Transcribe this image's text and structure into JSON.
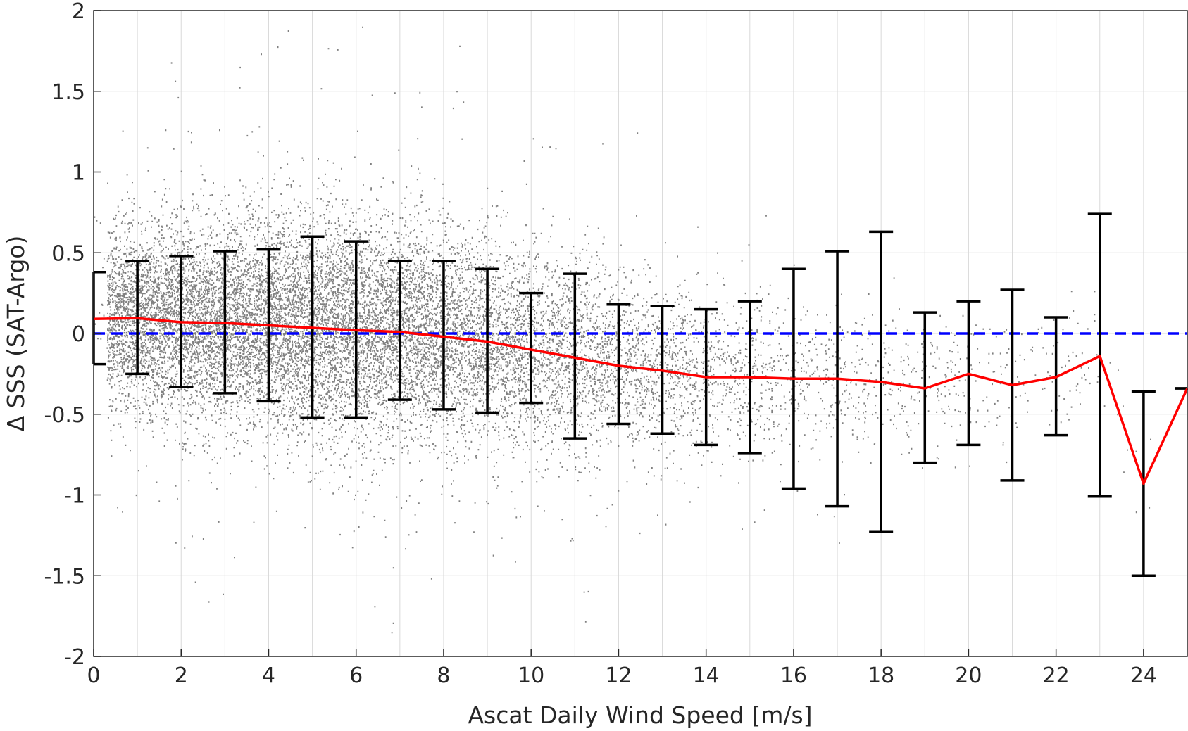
{
  "chart_data": {
    "type": "scatter",
    "xlabel": "Ascat Daily Wind Speed [m/s]",
    "ylabel": "Δ SSS (SAT-Argo)",
    "xlim": [
      0,
      25
    ],
    "ylim": [
      -2,
      2
    ],
    "x_ticks": [
      "0",
      "2",
      "4",
      "6",
      "8",
      "10",
      "12",
      "14",
      "16",
      "18",
      "20",
      "22",
      "24"
    ],
    "y_ticks": [
      "-2",
      "-1.5",
      "-1",
      "-0.5",
      "0",
      "0.5",
      "1",
      "1.5",
      "2"
    ],
    "grid": true,
    "colors": {
      "scatter": "#808080",
      "mean_line": "#ff0000",
      "zero_line": "#0000ff",
      "error_bars": "#000000"
    },
    "zero_reference_line": {
      "y": 0,
      "style": "dashed"
    },
    "scatter_description": "dense cloud of grey points; spread widest at 4-8 m/s and thinning above 17 m/s",
    "series": [
      {
        "type": "line",
        "x": [
          0,
          1,
          2,
          3,
          4,
          5,
          6,
          7,
          8,
          9,
          10,
          11,
          12,
          13,
          14,
          15,
          16,
          17,
          18,
          19,
          20,
          21,
          22,
          23,
          24,
          25
        ],
        "values": [
          0.09,
          0.095,
          0.07,
          0.065,
          0.05,
          0.035,
          0.02,
          0.01,
          -0.02,
          -0.05,
          -0.1,
          -0.15,
          -0.2,
          -0.23,
          -0.27,
          -0.27,
          -0.28,
          -0.28,
          -0.3,
          -0.34,
          -0.25,
          -0.32,
          -0.27,
          -0.14,
          -0.93,
          -0.34
        ]
      }
    ],
    "error_bars": {
      "x": [
        0,
        1,
        2,
        3,
        4,
        5,
        6,
        7,
        8,
        9,
        10,
        11,
        12,
        13,
        14,
        15,
        16,
        17,
        18,
        19,
        20,
        21,
        22,
        23,
        24,
        25
      ],
      "lower": [
        -0.19,
        -0.25,
        -0.33,
        -0.37,
        -0.42,
        -0.52,
        -0.52,
        -0.41,
        -0.47,
        -0.49,
        -0.43,
        -0.65,
        -0.56,
        -0.62,
        -0.69,
        -0.74,
        -0.96,
        -1.07,
        -1.23,
        -0.8,
        -0.69,
        -0.91,
        -0.63,
        -1.01,
        -1.5,
        -0.34
      ],
      "upper": [
        0.38,
        0.45,
        0.48,
        0.51,
        0.52,
        0.6,
        0.57,
        0.45,
        0.45,
        0.4,
        0.25,
        0.37,
        0.18,
        0.17,
        0.15,
        0.2,
        0.4,
        0.51,
        0.63,
        0.13,
        0.2,
        0.27,
        0.1,
        0.74,
        -0.36,
        -0.34
      ]
    }
  }
}
